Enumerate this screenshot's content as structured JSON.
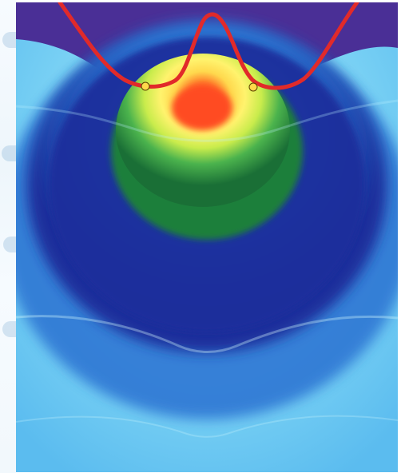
{
  "image": {
    "subject": "",
    "colors": {
      "outer": "#6cc7ef",
      "mid_blue": "#3d82d4",
      "deep_blue": "#1d2f99",
      "top_purple": "#4a2f96",
      "green": "#1f8d3b",
      "lime": "#b7e33c",
      "yellow": "#ffe95e",
      "orange": "#ff9f2f",
      "red": "#ff4a1f",
      "curve": "#e12a2a"
    }
  }
}
